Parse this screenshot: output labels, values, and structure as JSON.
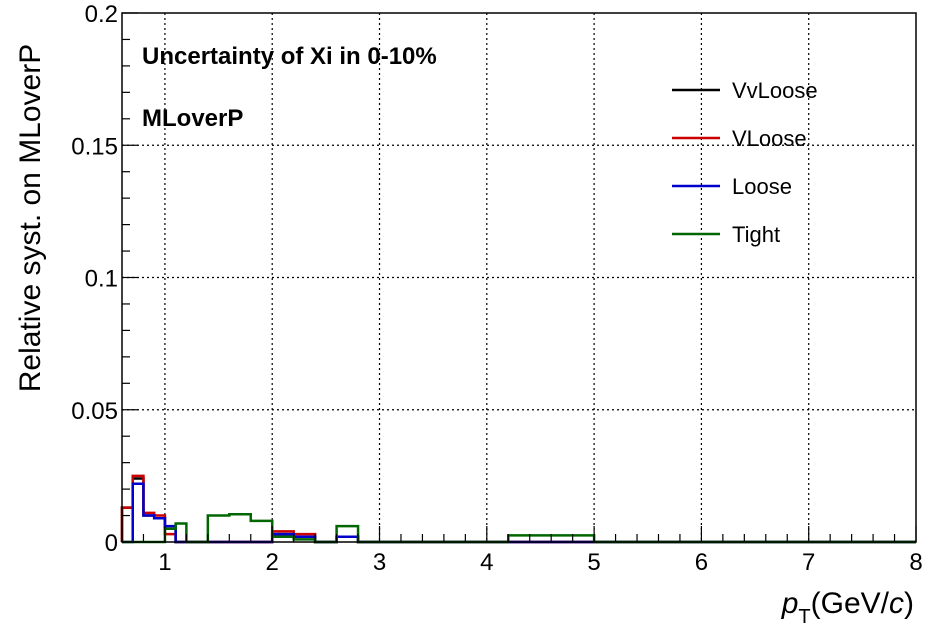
{
  "chart_data": {
    "type": "line",
    "title": "",
    "annotations": [
      "Uncertainty of Xi in 0-10%",
      "MLoverP"
    ],
    "xlabel_main": "p",
    "xlabel_sub": "T",
    "xlabel_unit_open": "(GeV/",
    "xlabel_unit_var": "c",
    "xlabel_unit_close": ")",
    "ylabel": "Relative syst. on MLoverP",
    "xlim": [
      0.6,
      8.0
    ],
    "ylim": [
      0,
      0.2
    ],
    "xticks": [
      1,
      2,
      3,
      4,
      5,
      6,
      7,
      8
    ],
    "xtick_labels": [
      "1",
      "2",
      "3",
      "4",
      "5",
      "6",
      "7",
      "8"
    ],
    "yticks": [
      0,
      0.05,
      0.1,
      0.15,
      0.2
    ],
    "ytick_labels": [
      "0",
      "0.05",
      "0.1",
      "0.15",
      "0.2"
    ],
    "grid": true,
    "legend_position": "top-right",
    "bin_edges": [
      0.6,
      0.7,
      0.8,
      0.9,
      1.0,
      1.1,
      1.2,
      1.4,
      1.6,
      1.8,
      2.0,
      2.2,
      2.4,
      2.6,
      2.8,
      3.0,
      3.5,
      4.0,
      4.2,
      4.5,
      5.0,
      6.0,
      8.0
    ],
    "series": [
      {
        "name": "VvLoose",
        "color": "#000000",
        "values": [
          0.013,
          0.024,
          0.01,
          0.009,
          0.005,
          0,
          0,
          0,
          0,
          0,
          0.003,
          0.002,
          0,
          0.002,
          0,
          0,
          0,
          0,
          0,
          0,
          0,
          0
        ]
      },
      {
        "name": "VLoose",
        "color": "#cc0000",
        "values": [
          0.013,
          0.025,
          0.011,
          0.01,
          0.003,
          0,
          0,
          0,
          0,
          0,
          0.004,
          0.003,
          0,
          0.002,
          0,
          0,
          0,
          0,
          0,
          0,
          0,
          0
        ]
      },
      {
        "name": "Loose",
        "color": "#0000cc",
        "values": [
          0,
          0.022,
          0.01,
          0.009,
          0.006,
          0,
          0,
          0,
          0,
          0,
          0.003,
          0.002,
          0,
          0.002,
          0,
          0,
          0,
          0,
          0,
          0,
          0,
          0
        ]
      },
      {
        "name": "Tight",
        "color": "#006600",
        "values": [
          0,
          0,
          0,
          0,
          0.005,
          0.007,
          0,
          0.01,
          0.0105,
          0.008,
          0.002,
          0.001,
          0,
          0.006,
          0,
          0,
          0,
          0,
          0.0025,
          0.0025,
          0,
          0
        ]
      }
    ]
  }
}
